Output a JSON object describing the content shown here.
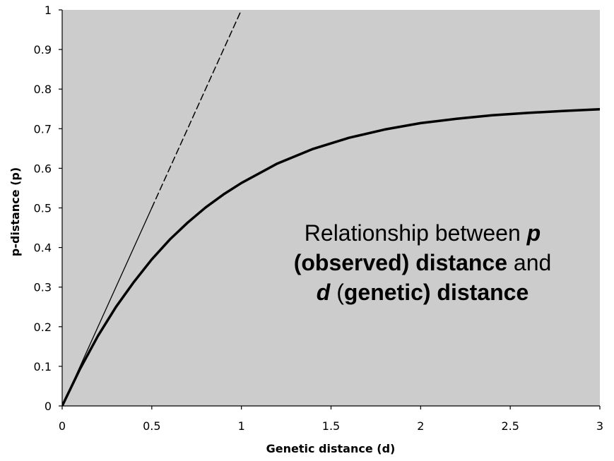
{
  "chart_data": {
    "type": "line",
    "title": "",
    "xlabel": "Genetic distance (d)",
    "ylabel": "p-distance (p)",
    "xlim": [
      0,
      3
    ],
    "ylim": [
      0,
      1
    ],
    "x_ticks": [
      "0",
      "0.5",
      "1",
      "1.5",
      "2",
      "2.5",
      "3"
    ],
    "y_ticks": [
      "0",
      "0.1",
      "0.2",
      "0.3",
      "0.4",
      "0.5",
      "0.6",
      "0.7",
      "0.8",
      "0.9",
      "1"
    ],
    "grid": false,
    "plot_background": "#cccccc",
    "series": [
      {
        "style": "thick-solid",
        "x": [
          0,
          0.1,
          0.2,
          0.3,
          0.4,
          0.5,
          0.6,
          0.7,
          0.8,
          0.9,
          1.0,
          1.2,
          1.4,
          1.6,
          1.8,
          2.0,
          2.2,
          2.4,
          2.6,
          2.8,
          3.0
        ],
        "y": [
          0,
          0.094,
          0.177,
          0.25,
          0.313,
          0.37,
          0.42,
          0.463,
          0.501,
          0.534,
          0.563,
          0.612,
          0.649,
          0.677,
          0.698,
          0.714,
          0.725,
          0.734,
          0.74,
          0.745,
          0.749
        ]
      },
      {
        "style": "thin-solid",
        "x": [
          0,
          0.5
        ],
        "y": [
          0,
          0.5
        ]
      },
      {
        "style": "dashed",
        "x": [
          0.5,
          1.0
        ],
        "y": [
          0.5,
          1.0
        ]
      }
    ],
    "annotation": {
      "line1_regular": "Relationship between ",
      "line1_bold_italic": "p",
      "line2_bold": "(observed) distance",
      "line2_regular": " and",
      "line3_bold_italic": "d",
      "line3_regular": " (",
      "line3_bold": "genetic) distance"
    }
  }
}
